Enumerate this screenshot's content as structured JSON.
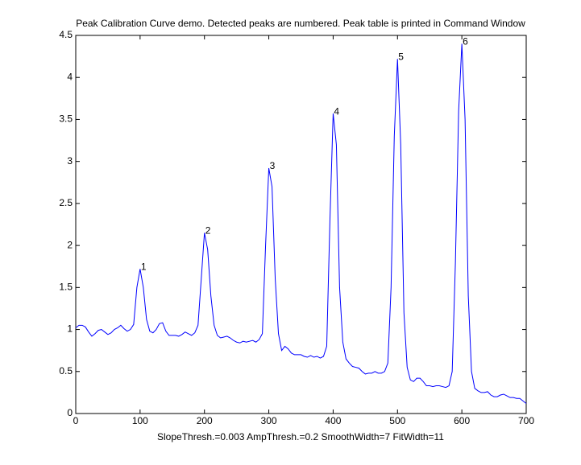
{
  "chart_data": {
    "type": "line",
    "title": "Peak Calibration Curve demo. Detected peaks are numbered. Peak table is printed in Command Window",
    "x_label": "SlopeThresh.=0.003    AmpThresh.=0.2    SmoothWidth=7    FitWidth=11",
    "x": [
      0,
      5,
      10,
      15,
      20,
      25,
      30,
      35,
      40,
      45,
      50,
      55,
      60,
      65,
      70,
      75,
      80,
      85,
      90,
      95,
      100,
      105,
      110,
      115,
      120,
      125,
      130,
      135,
      140,
      145,
      150,
      155,
      160,
      165,
      170,
      175,
      180,
      185,
      190,
      195,
      200,
      205,
      210,
      215,
      220,
      225,
      230,
      235,
      240,
      245,
      250,
      255,
      260,
      265,
      270,
      275,
      280,
      285,
      290,
      295,
      300,
      305,
      310,
      315,
      320,
      325,
      330,
      335,
      340,
      345,
      350,
      355,
      360,
      365,
      370,
      375,
      380,
      385,
      390,
      395,
      400,
      405,
      410,
      415,
      420,
      425,
      430,
      435,
      440,
      445,
      450,
      455,
      460,
      465,
      470,
      475,
      480,
      485,
      490,
      495,
      500,
      505,
      510,
      515,
      520,
      525,
      530,
      535,
      540,
      545,
      550,
      555,
      560,
      565,
      570,
      575,
      580,
      585,
      590,
      595,
      600,
      605,
      610,
      615,
      620,
      625,
      630,
      635,
      640,
      645,
      650,
      655,
      660,
      665,
      670,
      675,
      680,
      685,
      690,
      695,
      700
    ],
    "series": [
      {
        "color": "#0000ff",
        "values": [
          1.02,
          1.05,
          1.05,
          1.03,
          0.97,
          0.92,
          0.95,
          0.99,
          1.0,
          0.97,
          0.94,
          0.96,
          1.0,
          1.02,
          1.05,
          1.01,
          0.98,
          1.0,
          1.06,
          1.5,
          1.72,
          1.5,
          1.12,
          0.98,
          0.96,
          1.0,
          1.07,
          1.08,
          0.98,
          0.93,
          0.93,
          0.93,
          0.92,
          0.94,
          0.97,
          0.95,
          0.93,
          0.96,
          1.05,
          1.6,
          2.15,
          1.95,
          1.4,
          1.05,
          0.93,
          0.9,
          0.91,
          0.92,
          0.9,
          0.87,
          0.85,
          0.84,
          0.86,
          0.85,
          0.86,
          0.87,
          0.85,
          0.88,
          0.95,
          2.0,
          2.92,
          2.7,
          1.6,
          0.95,
          0.75,
          0.8,
          0.77,
          0.72,
          0.7,
          0.7,
          0.7,
          0.68,
          0.67,
          0.69,
          0.67,
          0.68,
          0.66,
          0.68,
          0.8,
          2.3,
          3.57,
          3.2,
          1.5,
          0.85,
          0.65,
          0.6,
          0.56,
          0.55,
          0.54,
          0.5,
          0.47,
          0.48,
          0.48,
          0.5,
          0.48,
          0.48,
          0.5,
          0.6,
          1.5,
          3.3,
          4.22,
          3.2,
          1.2,
          0.55,
          0.4,
          0.38,
          0.42,
          0.42,
          0.38,
          0.33,
          0.33,
          0.32,
          0.33,
          0.33,
          0.32,
          0.31,
          0.33,
          0.5,
          1.8,
          3.6,
          4.4,
          3.5,
          1.4,
          0.5,
          0.3,
          0.27,
          0.25,
          0.25,
          0.26,
          0.22,
          0.2,
          0.2,
          0.22,
          0.23,
          0.21,
          0.19,
          0.19,
          0.18,
          0.18,
          0.15,
          0.12
        ]
      }
    ],
    "annotations": [
      {
        "text": "1",
        "x": 100,
        "y": 1.72
      },
      {
        "text": "2",
        "x": 200,
        "y": 2.15
      },
      {
        "text": "3",
        "x": 300,
        "y": 2.92
      },
      {
        "text": "4",
        "x": 400,
        "y": 3.57
      },
      {
        "text": "5",
        "x": 500,
        "y": 4.22
      },
      {
        "text": "6",
        "x": 600,
        "y": 4.4
      }
    ],
    "xlim": [
      0,
      700
    ],
    "xticks": [
      0,
      100,
      200,
      300,
      400,
      500,
      600,
      700
    ],
    "ylim": [
      0,
      4.5
    ],
    "yticks": [
      0,
      0.5,
      1,
      1.5,
      2,
      2.5,
      3,
      3.5,
      4,
      4.5
    ]
  }
}
